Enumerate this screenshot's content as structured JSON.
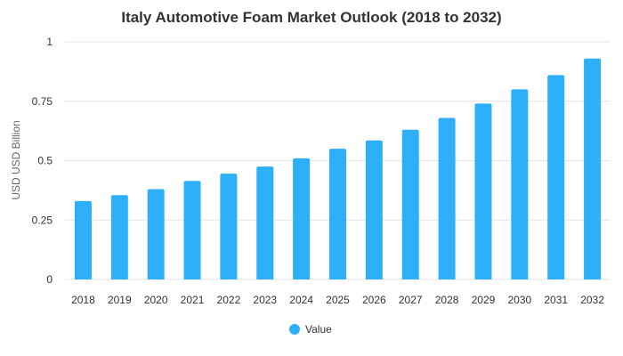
{
  "chart_data": {
    "type": "bar",
    "title": "Italy Automotive Foam Market Outlook (2018 to 2032)",
    "xlabel": "",
    "ylabel": "USD USD Billion",
    "categories": [
      "2018",
      "2019",
      "2020",
      "2021",
      "2022",
      "2023",
      "2024",
      "2025",
      "2026",
      "2027",
      "2028",
      "2029",
      "2030",
      "2031",
      "2032"
    ],
    "series": [
      {
        "name": "Value",
        "color": "#2eb0f8",
        "values": [
          0.33,
          0.355,
          0.38,
          0.415,
          0.445,
          0.475,
          0.51,
          0.55,
          0.585,
          0.63,
          0.68,
          0.74,
          0.8,
          0.86,
          0.93
        ]
      }
    ],
    "ylim": [
      0,
      1
    ],
    "yticks": [
      0,
      0.25,
      0.5,
      0.75,
      1
    ],
    "ytick_labels": [
      "0",
      "0.25",
      "0.5",
      "0.75",
      "1"
    ],
    "grid": true,
    "legend": "bottom-center"
  }
}
